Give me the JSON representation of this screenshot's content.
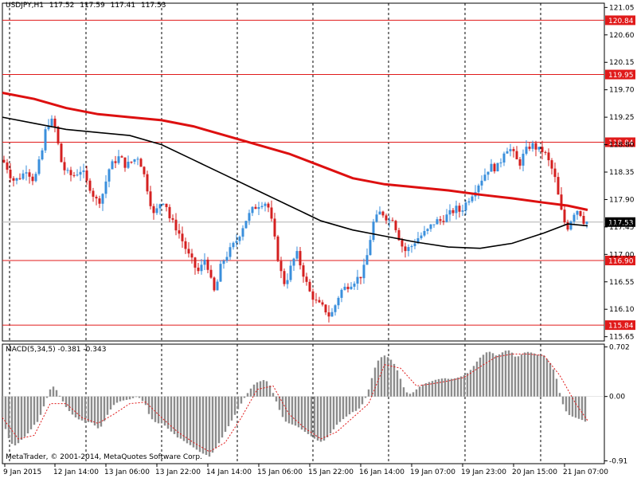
{
  "header": {
    "symbol": "USDJPY,H1",
    "open": "117.52",
    "high": "117.59",
    "low": "117.41",
    "close": "117.53"
  },
  "macd_header": {
    "name": "MACD(5,34,5)",
    "main": "-0.381",
    "signal": "-0.343"
  },
  "copyright": "MetaTrader, © 2001-2014, MetaQuotes Software Corp.",
  "colors": {
    "bull": "#3a8fdc",
    "bear": "#d42020",
    "ma_slow": "#dd1010",
    "ma_fast": "#000000",
    "level_line": "#e01a1a",
    "level_label_bg": "#e01a1a",
    "current_label_bg": "#000000",
    "histogram": "#8c8c8c",
    "signal": "#e01a1a",
    "grid": "#000000"
  },
  "chart_data": {
    "type": "candlestick",
    "price_axis_ticks": [
      "121.05",
      "120.60",
      "120.15",
      "119.70",
      "119.25",
      "118.80",
      "118.35",
      "117.90",
      "117.45",
      "117.00",
      "116.55",
      "116.10",
      "115.65"
    ],
    "price_range": [
      115.58,
      121.12
    ],
    "horizontal_levels": [
      "120.84",
      "119.95",
      "118.84",
      "116.90",
      "115.84"
    ],
    "current_price": "117.53",
    "time_labels": [
      "9 Jan 2015",
      "12 Jan 14:00",
      "13 Jan 06:00",
      "13 Jan 22:00",
      "14 Jan 14:00",
      "15 Jan 06:00",
      "15 Jan 22:00",
      "16 Jan 14:00",
      "19 Jan 07:00",
      "19 Jan 23:00",
      "20 Jan 15:00",
      "21 Jan 07:00"
    ],
    "macd_axis_ticks": [
      "0.702",
      "0.00",
      "-0.91"
    ],
    "macd_range": [
      -0.95,
      0.74
    ],
    "close_path": [
      [
        0,
        118.55
      ],
      [
        5,
        118.45
      ],
      [
        10,
        118.3
      ],
      [
        15,
        118.2
      ],
      [
        20,
        118.25
      ],
      [
        25,
        118.3
      ],
      [
        30,
        118.4
      ],
      [
        35,
        118.3
      ],
      [
        40,
        118.2
      ],
      [
        45,
        118.45
      ],
      [
        50,
        118.7
      ],
      [
        55,
        119.1
      ],
      [
        60,
        119.2
      ],
      [
        65,
        119.15
      ],
      [
        70,
        118.8
      ],
      [
        75,
        118.45
      ],
      [
        80,
        118.35
      ],
      [
        85,
        118.3
      ],
      [
        90,
        118.3
      ],
      [
        95,
        118.35
      ],
      [
        100,
        118.4
      ],
      [
        105,
        118.2
      ],
      [
        110,
        118.1
      ],
      [
        115,
        117.95
      ],
      [
        120,
        117.85
      ],
      [
        125,
        117.95
      ],
      [
        130,
        118.2
      ],
      [
        135,
        118.45
      ],
      [
        140,
        118.5
      ],
      [
        145,
        118.6
      ],
      [
        150,
        118.55
      ],
      [
        155,
        118.45
      ],
      [
        160,
        118.5
      ],
      [
        165,
        118.55
      ],
      [
        170,
        118.6
      ],
      [
        175,
        118.45
      ],
      [
        180,
        118.2
      ],
      [
        185,
        117.9
      ],
      [
        190,
        117.65
      ],
      [
        195,
        117.75
      ],
      [
        200,
        117.9
      ],
      [
        205,
        117.85
      ],
      [
        210,
        117.6
      ],
      [
        215,
        117.5
      ],
      [
        220,
        117.4
      ],
      [
        225,
        117.25
      ],
      [
        230,
        117.1
      ],
      [
        235,
        116.95
      ],
      [
        240,
        116.85
      ],
      [
        245,
        116.7
      ],
      [
        250,
        116.8
      ],
      [
        255,
        116.95
      ],
      [
        260,
        116.7
      ],
      [
        265,
        116.35
      ],
      [
        270,
        116.55
      ],
      [
        275,
        116.85
      ],
      [
        280,
        116.95
      ],
      [
        285,
        117.05
      ],
      [
        290,
        117.15
      ],
      [
        295,
        117.25
      ],
      [
        300,
        117.4
      ],
      [
        305,
        117.55
      ],
      [
        310,
        117.65
      ],
      [
        315,
        117.75
      ],
      [
        320,
        117.8
      ],
      [
        325,
        117.85
      ],
      [
        330,
        117.85
      ],
      [
        335,
        117.75
      ],
      [
        340,
        117.4
      ],
      [
        345,
        117.0
      ],
      [
        350,
        116.7
      ],
      [
        355,
        116.5
      ],
      [
        360,
        116.7
      ],
      [
        365,
        116.9
      ],
      [
        370,
        117.0
      ],
      [
        375,
        116.8
      ],
      [
        380,
        116.6
      ],
      [
        385,
        116.4
      ],
      [
        390,
        116.3
      ],
      [
        395,
        116.2
      ],
      [
        400,
        116.15
      ],
      [
        405,
        116.1
      ],
      [
        410,
        116.0
      ],
      [
        415,
        116.05
      ],
      [
        420,
        116.25
      ],
      [
        425,
        116.4
      ],
      [
        430,
        116.45
      ],
      [
        435,
        116.5
      ],
      [
        440,
        116.55
      ],
      [
        445,
        116.6
      ],
      [
        450,
        116.65
      ],
      [
        455,
        116.8
      ],
      [
        460,
        117.1
      ],
      [
        465,
        117.5
      ],
      [
        470,
        117.6
      ],
      [
        475,
        117.7
      ],
      [
        480,
        117.65
      ],
      [
        485,
        117.55
      ],
      [
        490,
        117.6
      ],
      [
        495,
        117.4
      ],
      [
        500,
        117.2
      ],
      [
        505,
        117.05
      ],
      [
        510,
        117.1
      ],
      [
        515,
        117.15
      ],
      [
        520,
        117.25
      ],
      [
        525,
        117.3
      ],
      [
        530,
        117.35
      ],
      [
        535,
        117.4
      ],
      [
        540,
        117.5
      ],
      [
        545,
        117.55
      ],
      [
        550,
        117.55
      ],
      [
        555,
        117.6
      ],
      [
        560,
        117.65
      ],
      [
        565,
        117.7
      ],
      [
        570,
        117.75
      ],
      [
        575,
        117.7
      ],
      [
        580,
        117.8
      ],
      [
        585,
        117.9
      ],
      [
        590,
        118.0
      ],
      [
        595,
        118.1
      ],
      [
        600,
        118.2
      ],
      [
        605,
        118.3
      ],
      [
        610,
        118.4
      ],
      [
        615,
        118.45
      ],
      [
        620,
        118.4
      ],
      [
        625,
        118.5
      ],
      [
        630,
        118.7
      ],
      [
        635,
        118.75
      ],
      [
        640,
        118.7
      ],
      [
        645,
        118.55
      ],
      [
        650,
        118.5
      ],
      [
        655,
        118.65
      ],
      [
        660,
        118.75
      ],
      [
        665,
        118.8
      ],
      [
        670,
        118.75
      ],
      [
        675,
        118.7
      ],
      [
        680,
        118.7
      ],
      [
        685,
        118.55
      ],
      [
        690,
        118.4
      ],
      [
        695,
        118.2
      ],
      [
        700,
        117.8
      ],
      [
        705,
        117.55
      ],
      [
        710,
        117.45
      ],
      [
        715,
        117.6
      ],
      [
        720,
        117.75
      ],
      [
        725,
        117.7
      ],
      [
        730,
        117.55
      ],
      [
        735,
        117.53
      ]
    ],
    "ma_slow_path": [
      [
        0,
        119.65
      ],
      [
        40,
        119.55
      ],
      [
        80,
        119.4
      ],
      [
        120,
        119.3
      ],
      [
        160,
        119.25
      ],
      [
        200,
        119.2
      ],
      [
        240,
        119.1
      ],
      [
        280,
        118.95
      ],
      [
        320,
        118.8
      ],
      [
        360,
        118.65
      ],
      [
        400,
        118.45
      ],
      [
        440,
        118.25
      ],
      [
        480,
        118.15
      ],
      [
        520,
        118.1
      ],
      [
        560,
        118.05
      ],
      [
        600,
        117.98
      ],
      [
        640,
        117.92
      ],
      [
        680,
        117.85
      ],
      [
        710,
        117.8
      ],
      [
        735,
        117.73
      ]
    ],
    "ma_fast_path": [
      [
        0,
        119.25
      ],
      [
        40,
        119.15
      ],
      [
        80,
        119.05
      ],
      [
        120,
        119.0
      ],
      [
        160,
        118.95
      ],
      [
        200,
        118.8
      ],
      [
        240,
        118.55
      ],
      [
        280,
        118.3
      ],
      [
        320,
        118.05
      ],
      [
        360,
        117.8
      ],
      [
        400,
        117.55
      ],
      [
        440,
        117.4
      ],
      [
        480,
        117.3
      ],
      [
        520,
        117.2
      ],
      [
        560,
        117.12
      ],
      [
        600,
        117.1
      ],
      [
        640,
        117.18
      ],
      [
        680,
        117.35
      ],
      [
        710,
        117.5
      ],
      [
        735,
        117.47
      ]
    ],
    "macd_hist_path": [
      [
        0,
        -0.3
      ],
      [
        5,
        -0.5
      ],
      [
        10,
        -0.65
      ],
      [
        15,
        -0.7
      ],
      [
        20,
        -0.66
      ],
      [
        25,
        -0.6
      ],
      [
        30,
        -0.55
      ],
      [
        35,
        -0.48
      ],
      [
        40,
        -0.4
      ],
      [
        45,
        -0.35
      ],
      [
        50,
        -0.2
      ],
      [
        55,
        -0.05
      ],
      [
        60,
        0.1
      ],
      [
        65,
        0.15
      ],
      [
        70,
        0.05
      ],
      [
        75,
        -0.05
      ],
      [
        80,
        -0.15
      ],
      [
        85,
        -0.22
      ],
      [
        90,
        -0.28
      ],
      [
        95,
        -0.32
      ],
      [
        100,
        -0.34
      ],
      [
        105,
        -0.38
      ],
      [
        110,
        -0.35
      ],
      [
        115,
        -0.4
      ],
      [
        120,
        -0.45
      ],
      [
        125,
        -0.42
      ],
      [
        130,
        -0.3
      ],
      [
        135,
        -0.2
      ],
      [
        140,
        -0.12
      ],
      [
        145,
        -0.08
      ],
      [
        150,
        -0.06
      ],
      [
        155,
        -0.05
      ],
      [
        160,
        -0.04
      ],
      [
        165,
        -0.02
      ],
      [
        170,
        0.0
      ],
      [
        175,
        -0.05
      ],
      [
        180,
        -0.12
      ],
      [
        185,
        -0.28
      ],
      [
        190,
        -0.35
      ],
      [
        195,
        -0.38
      ],
      [
        200,
        -0.38
      ],
      [
        205,
        -0.42
      ],
      [
        210,
        -0.48
      ],
      [
        215,
        -0.52
      ],
      [
        220,
        -0.58
      ],
      [
        225,
        -0.6
      ],
      [
        230,
        -0.65
      ],
      [
        235,
        -0.68
      ],
      [
        240,
        -0.72
      ],
      [
        245,
        -0.76
      ],
      [
        250,
        -0.8
      ],
      [
        255,
        -0.82
      ],
      [
        260,
        -0.85
      ],
      [
        265,
        -0.78
      ],
      [
        270,
        -0.7
      ],
      [
        275,
        -0.6
      ],
      [
        280,
        -0.5
      ],
      [
        285,
        -0.4
      ],
      [
        290,
        -0.3
      ],
      [
        295,
        -0.2
      ],
      [
        300,
        -0.1
      ],
      [
        305,
        0.0
      ],
      [
        310,
        0.08
      ],
      [
        315,
        0.16
      ],
      [
        320,
        0.2
      ],
      [
        325,
        0.22
      ],
      [
        330,
        0.24
      ],
      [
        335,
        0.18
      ],
      [
        340,
        0.05
      ],
      [
        345,
        -0.1
      ],
      [
        350,
        -0.25
      ],
      [
        355,
        -0.35
      ],
      [
        360,
        -0.38
      ],
      [
        365,
        -0.4
      ],
      [
        370,
        -0.42
      ],
      [
        375,
        -0.46
      ],
      [
        380,
        -0.5
      ],
      [
        385,
        -0.54
      ],
      [
        390,
        -0.58
      ],
      [
        395,
        -0.62
      ],
      [
        400,
        -0.64
      ],
      [
        405,
        -0.62
      ],
      [
        410,
        -0.55
      ],
      [
        415,
        -0.48
      ],
      [
        420,
        -0.4
      ],
      [
        425,
        -0.35
      ],
      [
        430,
        -0.3
      ],
      [
        435,
        -0.26
      ],
      [
        440,
        -0.22
      ],
      [
        445,
        -0.2
      ],
      [
        450,
        -0.15
      ],
      [
        455,
        -0.05
      ],
      [
        460,
        0.1
      ],
      [
        465,
        0.3
      ],
      [
        470,
        0.48
      ],
      [
        475,
        0.55
      ],
      [
        480,
        0.58
      ],
      [
        485,
        0.55
      ],
      [
        490,
        0.5
      ],
      [
        495,
        0.4
      ],
      [
        500,
        0.25
      ],
      [
        505,
        0.1
      ],
      [
        510,
        0.03
      ],
      [
        515,
        0.05
      ],
      [
        520,
        0.1
      ],
      [
        525,
        0.15
      ],
      [
        530,
        0.18
      ],
      [
        535,
        0.2
      ],
      [
        540,
        0.22
      ],
      [
        545,
        0.24
      ],
      [
        550,
        0.25
      ],
      [
        555,
        0.26
      ],
      [
        560,
        0.25
      ],
      [
        565,
        0.25
      ],
      [
        570,
        0.26
      ],
      [
        575,
        0.28
      ],
      [
        580,
        0.3
      ],
      [
        585,
        0.34
      ],
      [
        590,
        0.4
      ],
      [
        595,
        0.48
      ],
      [
        600,
        0.55
      ],
      [
        605,
        0.6
      ],
      [
        610,
        0.64
      ],
      [
        615,
        0.62
      ],
      [
        620,
        0.58
      ],
      [
        625,
        0.6
      ],
      [
        630,
        0.64
      ],
      [
        635,
        0.66
      ],
      [
        640,
        0.62
      ],
      [
        645,
        0.55
      ],
      [
        650,
        0.58
      ],
      [
        655,
        0.62
      ],
      [
        660,
        0.63
      ],
      [
        665,
        0.62
      ],
      [
        670,
        0.6
      ],
      [
        675,
        0.58
      ],
      [
        680,
        0.58
      ],
      [
        685,
        0.52
      ],
      [
        690,
        0.44
      ],
      [
        695,
        0.3
      ],
      [
        700,
        0.05
      ],
      [
        705,
        -0.15
      ],
      [
        710,
        -0.25
      ],
      [
        715,
        -0.28
      ],
      [
        720,
        -0.3
      ],
      [
        725,
        -0.32
      ],
      [
        730,
        -0.34
      ],
      [
        735,
        -0.38
      ]
    ],
    "macd_signal_path": [
      [
        0,
        -0.3
      ],
      [
        20,
        -0.6
      ],
      [
        40,
        -0.55
      ],
      [
        60,
        -0.1
      ],
      [
        80,
        -0.1
      ],
      [
        100,
        -0.3
      ],
      [
        120,
        -0.38
      ],
      [
        140,
        -0.25
      ],
      [
        160,
        -0.1
      ],
      [
        180,
        -0.08
      ],
      [
        200,
        -0.3
      ],
      [
        220,
        -0.5
      ],
      [
        240,
        -0.65
      ],
      [
        260,
        -0.78
      ],
      [
        280,
        -0.65
      ],
      [
        300,
        -0.3
      ],
      [
        320,
        0.1
      ],
      [
        340,
        0.15
      ],
      [
        360,
        -0.25
      ],
      [
        380,
        -0.45
      ],
      [
        400,
        -0.6
      ],
      [
        420,
        -0.5
      ],
      [
        440,
        -0.3
      ],
      [
        460,
        -0.1
      ],
      [
        480,
        0.45
      ],
      [
        500,
        0.4
      ],
      [
        520,
        0.15
      ],
      [
        540,
        0.18
      ],
      [
        560,
        0.22
      ],
      [
        580,
        0.27
      ],
      [
        600,
        0.42
      ],
      [
        620,
        0.56
      ],
      [
        640,
        0.6
      ],
      [
        660,
        0.6
      ],
      [
        680,
        0.58
      ],
      [
        700,
        0.3
      ],
      [
        720,
        -0.1
      ],
      [
        735,
        -0.34
      ]
    ]
  }
}
